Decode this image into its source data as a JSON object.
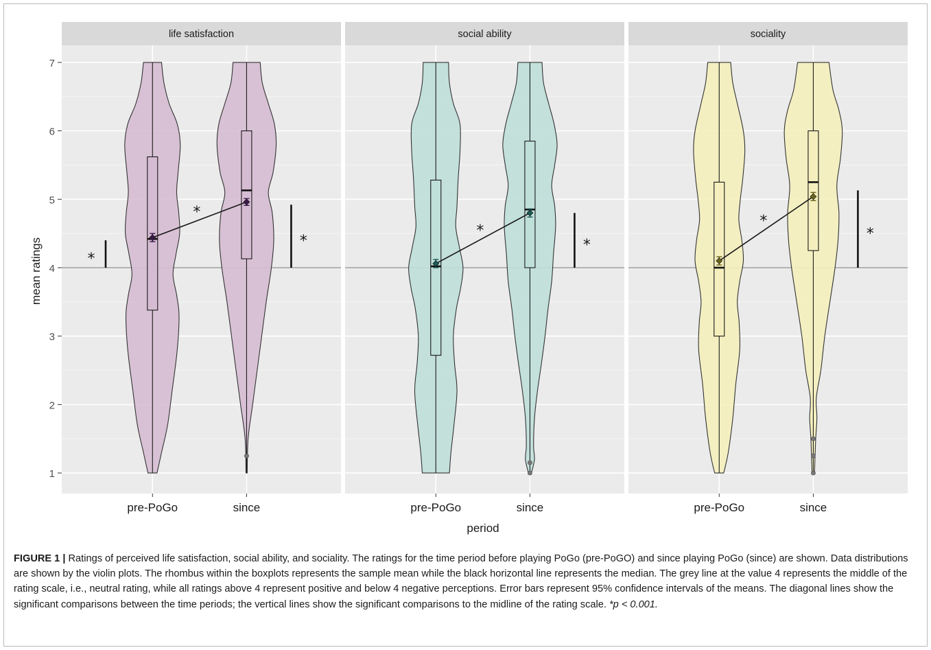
{
  "chart_data": {
    "type": "violin",
    "ylabel": "mean ratings",
    "xlabel": "period",
    "categories": [
      "pre-PoGo",
      "since"
    ],
    "ylim": [
      0.7,
      7.25
    ],
    "yticks": [
      1,
      2,
      3,
      4,
      5,
      6,
      7
    ],
    "reference_line": 4,
    "significance_marker": "*",
    "panels": [
      {
        "title": "life satisfaction",
        "color": "#d6bcd3",
        "mean_color": "#3b1a4a",
        "groups": [
          {
            "period": "pre-PoGo",
            "min": 1,
            "q1": 3.38,
            "median": 4.42,
            "q3": 5.62,
            "max": 7,
            "mean": 4.44,
            "ci": [
              4.38,
              4.5
            ],
            "violin": [
              [
                1,
                0.15
              ],
              [
                1.3,
                0.3
              ],
              [
                1.7,
                0.5
              ],
              [
                2.2,
                0.65
              ],
              [
                2.8,
                0.82
              ],
              [
                3.3,
                0.88
              ],
              [
                3.6,
                0.8
              ],
              [
                3.9,
                0.68
              ],
              [
                4.2,
                0.78
              ],
              [
                4.5,
                0.9
              ],
              [
                4.8,
                0.87
              ],
              [
                5.1,
                0.8
              ],
              [
                5.4,
                0.85
              ],
              [
                5.8,
                0.92
              ],
              [
                6.1,
                0.82
              ],
              [
                6.4,
                0.55
              ],
              [
                6.7,
                0.38
              ],
              [
                7,
                0.3
              ]
            ]
          },
          {
            "period": "since",
            "min": 1,
            "q1": 4.13,
            "median": 5.13,
            "q3": 6.0,
            "max": 7,
            "mean": 4.96,
            "ci": [
              4.91,
              5.01
            ],
            "violin": [
              [
                1,
                0.02
              ],
              [
                1.5,
                0.05
              ],
              [
                2.0,
                0.2
              ],
              [
                2.5,
                0.35
              ],
              [
                3.0,
                0.5
              ],
              [
                3.5,
                0.65
              ],
              [
                4.0,
                0.82
              ],
              [
                4.4,
                0.9
              ],
              [
                4.8,
                0.85
              ],
              [
                5.1,
                0.72
              ],
              [
                5.4,
                0.88
              ],
              [
                5.8,
                0.98
              ],
              [
                6.1,
                0.92
              ],
              [
                6.4,
                0.72
              ],
              [
                6.7,
                0.52
              ],
              [
                7,
                0.45
              ]
            ],
            "outliers": [
              1.25
            ]
          }
        ],
        "diagonal_annotation": "*",
        "midline_comparisons": [
          {
            "period": "pre-PoGo",
            "top": 4.4
          },
          {
            "period": "since",
            "top": 4.92
          }
        ]
      },
      {
        "title": "social ability",
        "color": "#bfdfd9",
        "mean_color": "#1c5a55",
        "groups": [
          {
            "period": "pre-PoGo",
            "min": 1,
            "q1": 2.72,
            "median": 4.02,
            "q3": 5.28,
            "max": 7,
            "mean": 4.06,
            "ci": [
              4.0,
              4.12
            ],
            "violin": [
              [
                1,
                0.45
              ],
              [
                1.3,
                0.5
              ],
              [
                1.7,
                0.6
              ],
              [
                2.2,
                0.7
              ],
              [
                2.6,
                0.62
              ],
              [
                3.0,
                0.58
              ],
              [
                3.4,
                0.68
              ],
              [
                3.7,
                0.82
              ],
              [
                4.0,
                0.9
              ],
              [
                4.3,
                0.78
              ],
              [
                4.6,
                0.66
              ],
              [
                4.9,
                0.7
              ],
              [
                5.3,
                0.74
              ],
              [
                5.7,
                0.8
              ],
              [
                6.1,
                0.8
              ],
              [
                6.4,
                0.58
              ],
              [
                6.7,
                0.45
              ],
              [
                7,
                0.42
              ]
            ]
          },
          {
            "period": "since",
            "min": 1,
            "q1": 4.0,
            "median": 4.85,
            "q3": 5.85,
            "max": 7,
            "mean": 4.8,
            "ci": [
              4.74,
              4.86
            ],
            "violin": [
              [
                1,
                0.05
              ],
              [
                1.2,
                0.15
              ],
              [
                1.4,
                0.12
              ],
              [
                1.8,
                0.15
              ],
              [
                2.2,
                0.25
              ],
              [
                2.6,
                0.38
              ],
              [
                3.0,
                0.5
              ],
              [
                3.4,
                0.6
              ],
              [
                3.8,
                0.72
              ],
              [
                4.2,
                0.78
              ],
              [
                4.6,
                0.85
              ],
              [
                4.9,
                0.82
              ],
              [
                5.2,
                0.72
              ],
              [
                5.5,
                0.82
              ],
              [
                5.8,
                0.9
              ],
              [
                6.1,
                0.8
              ],
              [
                6.4,
                0.62
              ],
              [
                6.7,
                0.45
              ],
              [
                7,
                0.4
              ]
            ],
            "outliers": [
              1.0,
              1.15
            ]
          }
        ],
        "diagonal_annotation": "*",
        "midline_comparisons": [
          {
            "period": "since",
            "top": 4.8
          }
        ]
      },
      {
        "title": "sociality",
        "color": "#f5efbd",
        "mean_color": "#6b6420",
        "groups": [
          {
            "period": "pre-PoGo",
            "min": 1,
            "q1": 3.0,
            "median": 4.0,
            "q3": 5.25,
            "max": 7,
            "mean": 4.1,
            "ci": [
              4.04,
              4.16
            ],
            "violin": [
              [
                1,
                0.15
              ],
              [
                1.3,
                0.3
              ],
              [
                1.8,
                0.45
              ],
              [
                2.3,
                0.55
              ],
              [
                2.8,
                0.68
              ],
              [
                3.2,
                0.66
              ],
              [
                3.5,
                0.6
              ],
              [
                3.8,
                0.68
              ],
              [
                4.1,
                0.8
              ],
              [
                4.4,
                0.75
              ],
              [
                4.7,
                0.65
              ],
              [
                5.0,
                0.7
              ],
              [
                5.3,
                0.78
              ],
              [
                5.7,
                0.85
              ],
              [
                6.0,
                0.8
              ],
              [
                6.4,
                0.6
              ],
              [
                6.7,
                0.45
              ],
              [
                7,
                0.38
              ]
            ]
          },
          {
            "period": "since",
            "min": 1,
            "q1": 4.25,
            "median": 5.25,
            "q3": 6.0,
            "max": 7,
            "mean": 5.04,
            "ci": [
              4.98,
              5.1
            ],
            "violin": [
              [
                1,
                0.04
              ],
              [
                1.5,
                0.08
              ],
              [
                1.8,
                0.12
              ],
              [
                2.1,
                0.1
              ],
              [
                2.5,
                0.25
              ],
              [
                3.0,
                0.38
              ],
              [
                3.5,
                0.55
              ],
              [
                4.0,
                0.72
              ],
              [
                4.4,
                0.82
              ],
              [
                4.8,
                0.85
              ],
              [
                5.2,
                0.78
              ],
              [
                5.6,
                0.9
              ],
              [
                6.0,
                0.96
              ],
              [
                6.3,
                0.85
              ],
              [
                6.6,
                0.65
              ],
              [
                7,
                0.52
              ]
            ],
            "outliers": [
              1.0,
              1.25,
              1.5
            ]
          }
        ],
        "diagonal_annotation": "*",
        "midline_comparisons": [
          {
            "period": "since",
            "top": 5.13
          }
        ]
      }
    ]
  },
  "caption": {
    "label": "FIGURE 1 |",
    "text": " Ratings of perceived life satisfaction, social ability, and sociality. The ratings for the time period before playing PoGo (pre-PoGO) and since playing PoGo (since) are shown. Data distributions are shown by the violin plots. The rhombus within the boxplots represents the sample mean while the black horizontal line represents the median. The grey line at the value 4 represents the middle of the rating scale, i.e., neutral rating, while all ratings above 4 represent positive and below 4 negative perceptions. Error bars represent 95% confidence intervals of the means. The diagonal lines show the significant comparisons between the time periods; the vertical lines show the significant comparisons to the midline of the rating scale. ",
    "pvalue": "*p < 0.001."
  }
}
